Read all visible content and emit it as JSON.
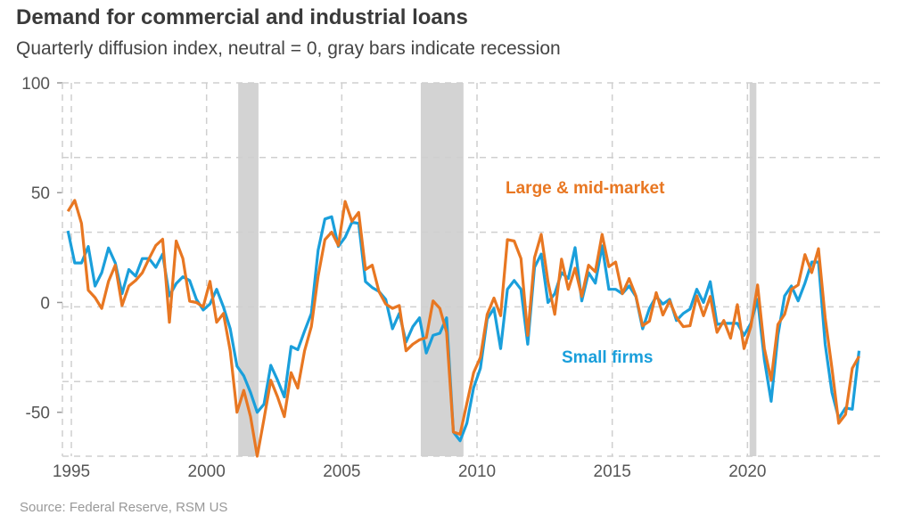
{
  "chart_data": {
    "type": "line",
    "title": "Demand for commercial and industrial loans",
    "subtitle": "Quarterly diffusion index, neutral = 0, gray bars indicate recession",
    "source": "Source: Federal Reserve, RSM US",
    "xlabel": "",
    "ylabel": "",
    "start_quarter": "1994Q4",
    "frequency": "quarterly",
    "xlim": [
      1994.67,
      2025.0
    ],
    "ylim": [
      -70,
      100
    ],
    "x_ticks": [
      "1995",
      "2000",
      "2005",
      "2010",
      "2015",
      "2020"
    ],
    "y_ticks": [
      "100",
      "50",
      "0",
      "-50"
    ],
    "grid": true,
    "recessions": [
      [
        2001.17,
        2001.92
      ],
      [
        2007.92,
        2009.5
      ],
      [
        2020.08,
        2020.33
      ]
    ],
    "series": [
      {
        "name": "Large & mid-market",
        "color": "#E87722",
        "values": [
          41.5,
          46.5,
          36,
          5.6,
          2.2,
          -2.7,
          9.6,
          17,
          -1.4,
          7.5,
          10,
          13.5,
          20,
          26,
          28.8,
          -9,
          28,
          20,
          0.6,
          0,
          -2,
          9.6,
          -9,
          -5,
          -22,
          -50,
          -40,
          -52,
          -70,
          -53,
          -35.4,
          -43,
          -52,
          -32,
          -39,
          -22,
          -11,
          12,
          28.6,
          32,
          26,
          46,
          37,
          41,
          15,
          17,
          5,
          -0.7,
          -2.7,
          -1.4,
          -22,
          -19,
          -17,
          -16,
          0.7,
          -2.7,
          -13.6,
          -59,
          -60,
          -46,
          -32,
          -25,
          -5.5,
          2,
          -6,
          28.6,
          28,
          20,
          -15,
          20.4,
          31,
          9.5,
          -5.4,
          19.7,
          6,
          15.6,
          2.7,
          17,
          14,
          31,
          16.3,
          18.4,
          4,
          10.9,
          3,
          -10.6,
          -8.5,
          4.5,
          -5.7,
          0.7,
          -6.8,
          -11,
          -10.6,
          3,
          -6,
          2.7,
          -13.6,
          -8.2,
          -16.3,
          -1,
          -21,
          -11,
          8,
          -21,
          -35.4,
          -10,
          -5.4,
          6,
          8,
          21.8,
          13.6,
          24.5,
          -7,
          -30,
          -55,
          -51,
          -30,
          -24.5
        ]
      },
      {
        "name": "Small firms",
        "color": "#1A9FDB",
        "values": [
          32.6,
          18,
          18,
          25.5,
          7.5,
          13.6,
          24.8,
          18,
          4,
          15,
          12,
          20,
          20,
          16,
          22,
          3,
          8.6,
          11.7,
          10,
          1.4,
          -3.4,
          -0.7,
          6,
          -2,
          -12,
          -29,
          -33.4,
          -41,
          -50,
          -46.3,
          -28.6,
          -35.4,
          -43,
          -20,
          -21.5,
          -13,
          -5,
          23.8,
          38,
          39,
          25.5,
          29.7,
          36.5,
          36,
          9.5,
          6.8,
          5,
          1.4,
          -12,
          -5,
          -18,
          -11,
          -7,
          -23,
          -15,
          -14,
          -7,
          -59,
          -63,
          -55,
          -38.8,
          -30,
          -7.5,
          -2.7,
          -21,
          6,
          10,
          6,
          -19,
          16,
          22,
          0,
          4,
          13.6,
          10.9,
          25,
          0.7,
          13.6,
          8.8,
          25.8,
          6,
          6,
          4,
          7.5,
          2.7,
          -12,
          -2.7,
          2.7,
          -0.7,
          1.4,
          -8.2,
          -5,
          -3,
          6,
          0,
          9.5,
          -10,
          -9.5,
          -9.5,
          -9.5,
          -15,
          -9.5,
          1.4,
          -26,
          -45,
          -15,
          3,
          7.5,
          0.7,
          8.8,
          18.4,
          18.4,
          -19,
          -41,
          -52.8,
          -48,
          -48.6,
          -22
        ]
      }
    ]
  }
}
